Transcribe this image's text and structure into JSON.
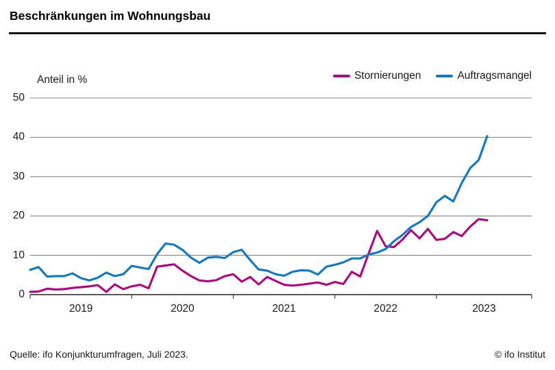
{
  "header": {
    "title": "Beschränkungen im Wohnungsbau"
  },
  "axis": {
    "unit_label": "Anteil in %"
  },
  "footer": {
    "source": "Quelle: ifo Konjunkturumfragen, Juli 2023.",
    "copyright": "© ifo Institut"
  },
  "colors": {
    "stornierungen": "#a80d7e",
    "auftragsmangel": "#1878bc",
    "grid": "#848484",
    "axis": "#3f3f3f"
  },
  "chart_data": {
    "type": "line",
    "title": "Beschränkungen im Wohnungsbau",
    "ylabel": "Anteil in %",
    "ylim": [
      0,
      50
    ],
    "yticks": [
      0,
      10,
      20,
      30,
      40,
      50
    ],
    "grid": true,
    "legend_position": "top-right",
    "x_start": "2019-01",
    "x_end": "2023-07",
    "x_frequency": "monthly",
    "xticks": [
      "2019",
      "2020",
      "2021",
      "2022",
      "2023"
    ],
    "series": [
      {
        "name": "Stornierungen",
        "color": "#a80d7e",
        "values": [
          0.7,
          0.8,
          1.5,
          1.3,
          1.4,
          1.7,
          1.9,
          2.1,
          2.4,
          0.7,
          2.6,
          1.4,
          2.1,
          2.5,
          1.6,
          7.1,
          7.4,
          7.7,
          6.1,
          4.7,
          3.6,
          3.4,
          3.7,
          4.7,
          5.2,
          3.3,
          4.5,
          2.6,
          4.5,
          3.5,
          2.5,
          2.3,
          2.5,
          2.8,
          3.1,
          2.5,
          3.2,
          2.7,
          5.8,
          4.6,
          10.5,
          16.2,
          12.3,
          12.1,
          14.0,
          16.4,
          14.3,
          16.7,
          13.9,
          14.2,
          15.9,
          14.9,
          17.3,
          19.2,
          18.9
        ]
      },
      {
        "name": "Auftragsmangel",
        "color": "#1878bc",
        "values": [
          6.3,
          7.0,
          4.6,
          4.7,
          4.7,
          5.4,
          4.2,
          3.6,
          4.3,
          5.6,
          4.7,
          5.2,
          7.3,
          6.9,
          6.5,
          10.3,
          13.0,
          12.7,
          11.4,
          9.4,
          8.1,
          9.4,
          9.6,
          9.3,
          10.8,
          11.4,
          8.8,
          6.4,
          6.1,
          5.2,
          4.8,
          5.8,
          6.2,
          6.1,
          5.1,
          7.1,
          7.6,
          8.2,
          9.2,
          9.2,
          10.2,
          10.7,
          11.6,
          13.6,
          15.2,
          17.2,
          18.4,
          20.0,
          23.5,
          25.1,
          23.7,
          28.4,
          32.2,
          34.2,
          40.3
        ]
      }
    ]
  }
}
